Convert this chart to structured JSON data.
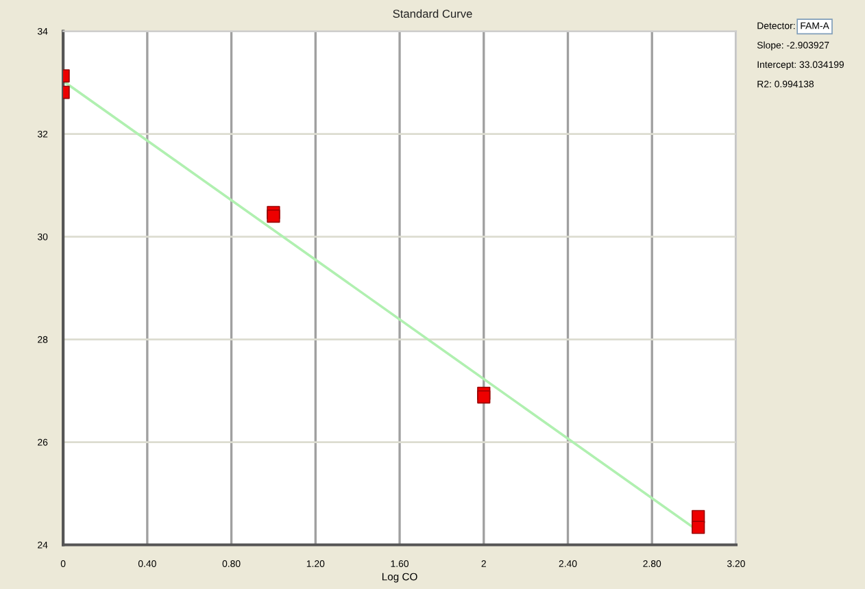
{
  "chart_data": {
    "type": "scatter",
    "title": "Standard Curve",
    "xlabel": "Log CO",
    "xlim": [
      0,
      3.2
    ],
    "xticks": [
      0,
      {
        "value": 0.4,
        "label": "0.40"
      },
      {
        "value": 0.8,
        "label": "0.80"
      },
      {
        "value": 1.2,
        "label": "1.20"
      },
      {
        "value": 1.6,
        "label": "1.60"
      },
      2,
      {
        "value": 2.4,
        "label": "2.40"
      },
      {
        "value": 2.8,
        "label": "2.80"
      },
      {
        "value": 3.2,
        "label": "3.20"
      }
    ],
    "ylim": [
      24,
      34
    ],
    "yticks": [
      24,
      26,
      28,
      30,
      32,
      34
    ],
    "grid": true,
    "series": [
      {
        "marker": "square",
        "color": "#ee0000",
        "x": [
          0,
          0,
          1,
          1,
          2,
          2,
          3.02,
          3.02
        ],
        "values": [
          33.13,
          32.81,
          30.47,
          30.4,
          26.95,
          26.88,
          24.55,
          24.34
        ]
      },
      {
        "type": "line",
        "color": "#b0f0b0",
        "x": [
          0,
          3.02
        ],
        "values": [
          33.03,
          24.27
        ],
        "line_style": "solid"
      }
    ],
    "annotations": [
      "Detector:",
      "FAM-A",
      "Slope: -2.903927",
      "Intercept: 33.034199",
      "R2: 0.994138"
    ]
  }
}
